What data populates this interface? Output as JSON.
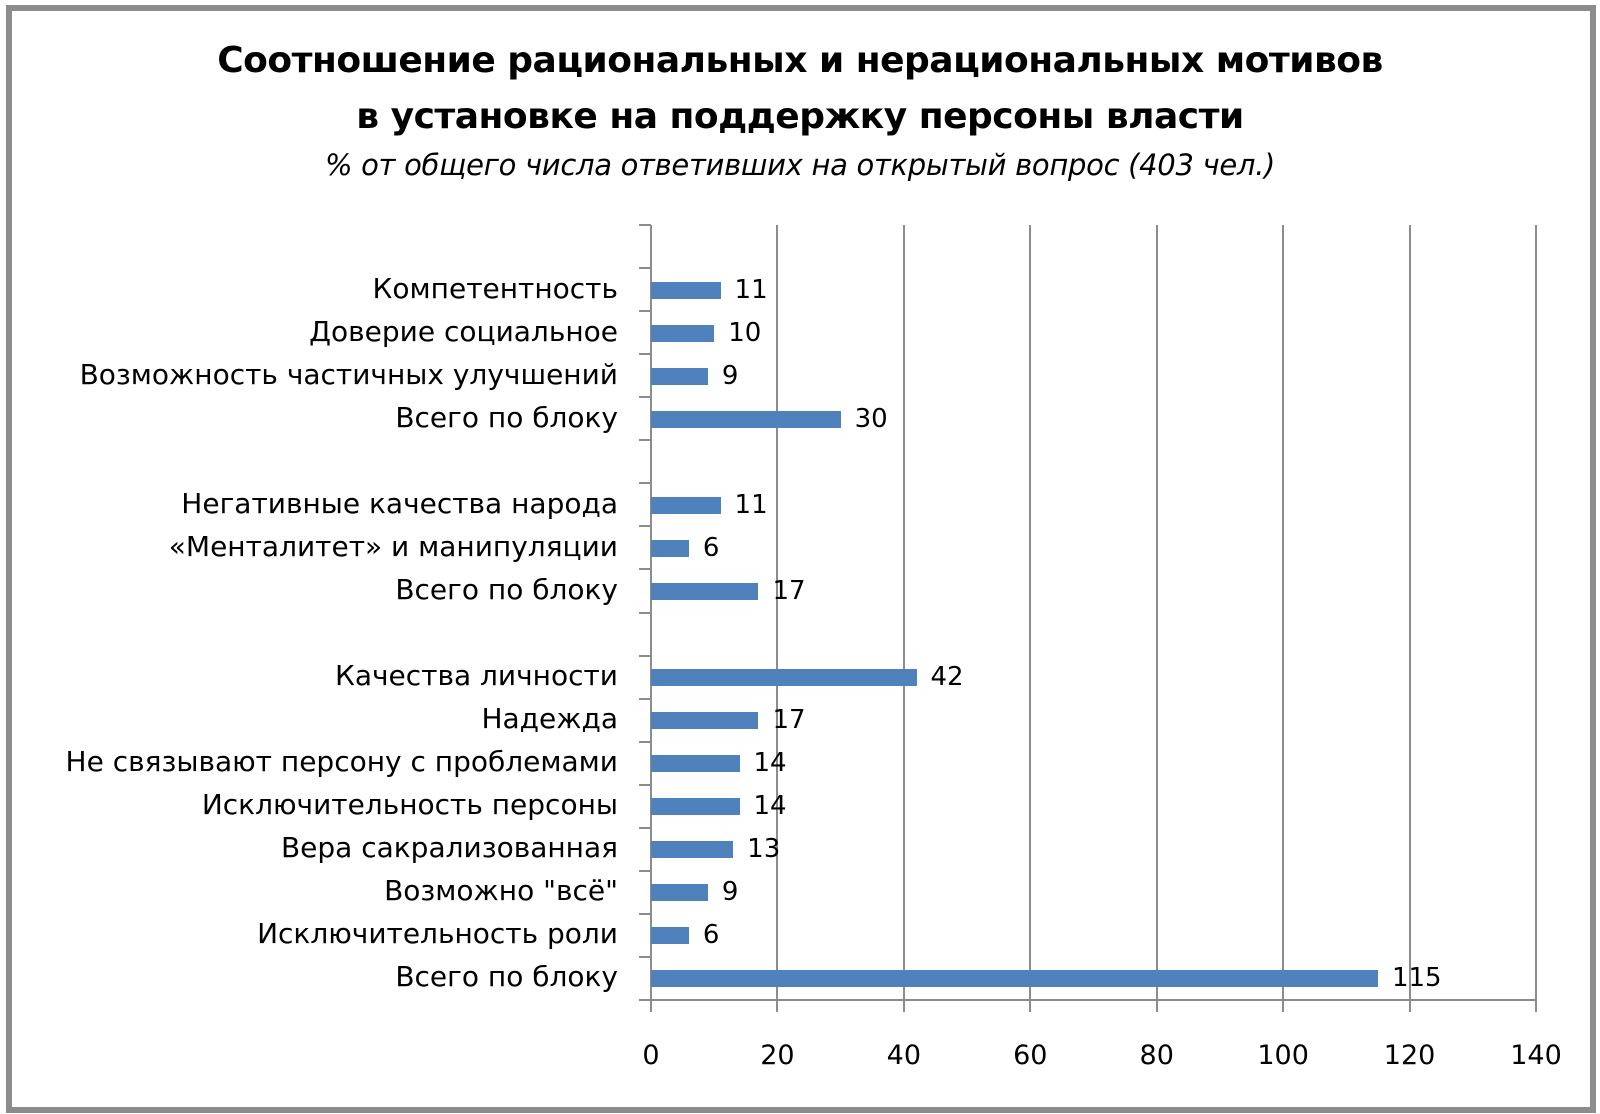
{
  "chart_data": {
    "type": "bar",
    "orientation": "horizontal",
    "title": "Соотношение рациональных и нерациональных мотивов в установке на поддержку персоны власти",
    "title_lines": [
      "Соотношение рациональных и нерациональных мотивов",
      "в установке на поддержку персоны власти"
    ],
    "subtitle": "% от общего числа ответивших на открытый вопрос (403 чел.)",
    "xlabel": "",
    "ylabel": "",
    "xlim": [
      0,
      140
    ],
    "xticks": [
      "0",
      "20",
      "40",
      "60",
      "80",
      "100",
      "120",
      "140"
    ],
    "grid": "vertical",
    "legend": "none",
    "bar_color": "#4f81bd",
    "slots": [
      {
        "label": "",
        "value": null
      },
      {
        "label": "Компетентность",
        "value": 11
      },
      {
        "label": "Доверие социальное",
        "value": 10
      },
      {
        "label": "Возможность частичных улучшений",
        "value": 9
      },
      {
        "label": "Всего по блоку",
        "value": 30
      },
      {
        "label": "",
        "value": null
      },
      {
        "label": "Негативные качества народа",
        "value": 11
      },
      {
        "label": "«Менталитет» и манипуляции",
        "value": 6
      },
      {
        "label": "Всего по блоку",
        "value": 17
      },
      {
        "label": "",
        "value": null
      },
      {
        "label": "Качества личности",
        "value": 42
      },
      {
        "label": "Надежда",
        "value": 17
      },
      {
        "label": "Не связывают персону с проблемами",
        "value": 14
      },
      {
        "label": "Исключительность персоны",
        "value": 14
      },
      {
        "label": "Вера сакрализованная",
        "value": 13
      },
      {
        "label": "Возможно \"всё\"",
        "value": 9
      },
      {
        "label": "Исключительность роли",
        "value": 6
      },
      {
        "label": "Всего по блоку",
        "value": 115
      }
    ],
    "categories": [
      "Компетентность",
      "Доверие социальное",
      "Возможность частичных улучшений",
      "Всего по блоку",
      "Негативные качества народа",
      "«Менталитет» и манипуляции",
      "Всего по блоку",
      "Качества личности",
      "Надежда",
      "Не связывают персону с проблемами",
      "Исключительность персоны",
      "Вера сакрализованная",
      "Возможно \"всё\"",
      "Исключительность роли",
      "Всего по блоку"
    ],
    "values": [
      11,
      10,
      9,
      30,
      11,
      6,
      17,
      42,
      17,
      14,
      14,
      13,
      9,
      6,
      115
    ]
  }
}
